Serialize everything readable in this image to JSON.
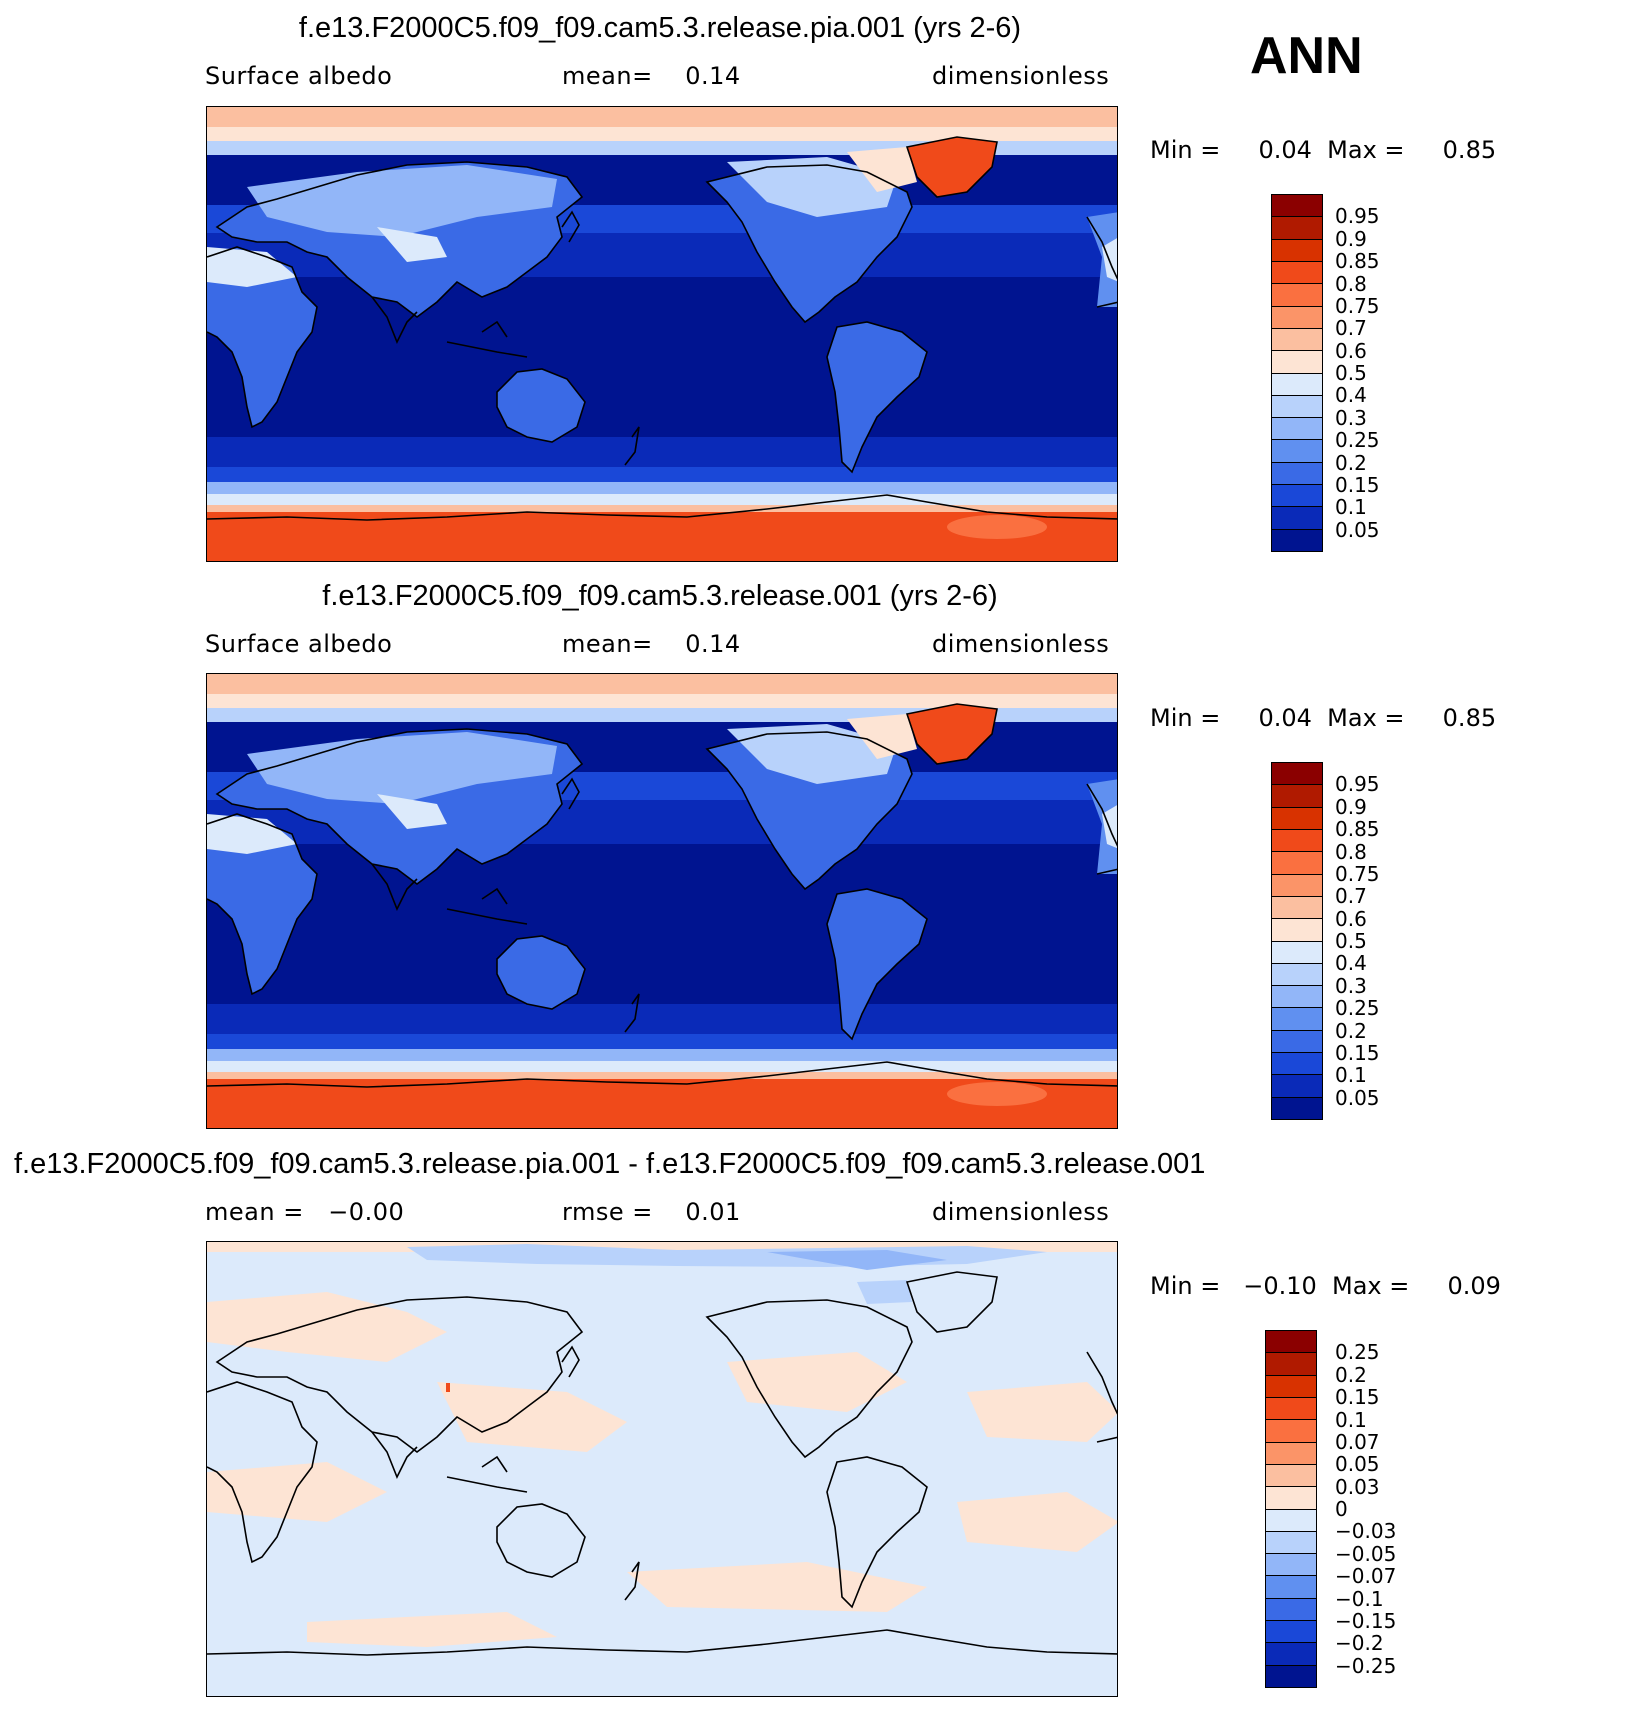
{
  "season": "ANN",
  "panels": [
    {
      "title": "f.e13.F2000C5.f09_f09.cam5.3.release.pia.001 (yrs 2-6)",
      "left_label": "Surface albedo",
      "center_label": "mean=    0.14",
      "right_label": "dimensionless",
      "minmax": "Min =     0.04  Max =     0.85",
      "type": "field"
    },
    {
      "title": "f.e13.F2000C5.f09_f09.cam5.3.release.001 (yrs 2-6)",
      "left_label": "Surface albedo",
      "center_label": "mean=    0.14",
      "right_label": "dimensionless",
      "minmax": "Min =     0.04  Max =     0.85",
      "type": "field"
    },
    {
      "title": "f.e13.F2000C5.f09_f09.cam5.3.release.pia.001 - f.e13.F2000C5.f09_f09.cam5.3.release.001",
      "left_label": "mean =   −0.00",
      "center_label": "rmse =    0.01",
      "right_label": "dimensionless",
      "minmax": "Min =   −0.10  Max =     0.09",
      "type": "diff"
    }
  ],
  "colorbar_field": {
    "labels": [
      "0.95",
      "0.9",
      "0.85",
      "0.8",
      "0.75",
      "0.7",
      "0.6",
      "0.5",
      "0.4",
      "0.3",
      "0.25",
      "0.2",
      "0.15",
      "0.1",
      "0.05"
    ],
    "colors": [
      "#8b0000",
      "#b01a00",
      "#d83200",
      "#f04a1a",
      "#fa7040",
      "#fb9468",
      "#fbbfa0",
      "#fde4d4",
      "#dceafb",
      "#b8d2fb",
      "#92b6f8",
      "#6090f0",
      "#3a6ae6",
      "#1a48d8",
      "#0a2ab8",
      "#001490"
    ]
  },
  "colorbar_diff": {
    "labels": [
      "0.25",
      "0.2",
      "0.15",
      "0.1",
      "0.07",
      "0.05",
      "0.03",
      "0",
      "−0.03",
      "−0.05",
      "−0.07",
      "−0.1",
      "−0.15",
      "−0.2",
      "−0.25"
    ],
    "colors": [
      "#8b0000",
      "#b01a00",
      "#d83200",
      "#f04a1a",
      "#fa7040",
      "#fb9468",
      "#fbbfa0",
      "#fde4d4",
      "#dceafb",
      "#b8d2fb",
      "#92b6f8",
      "#6090f0",
      "#3a6ae6",
      "#1a48d8",
      "#0a2ab8",
      "#001490"
    ]
  }
}
